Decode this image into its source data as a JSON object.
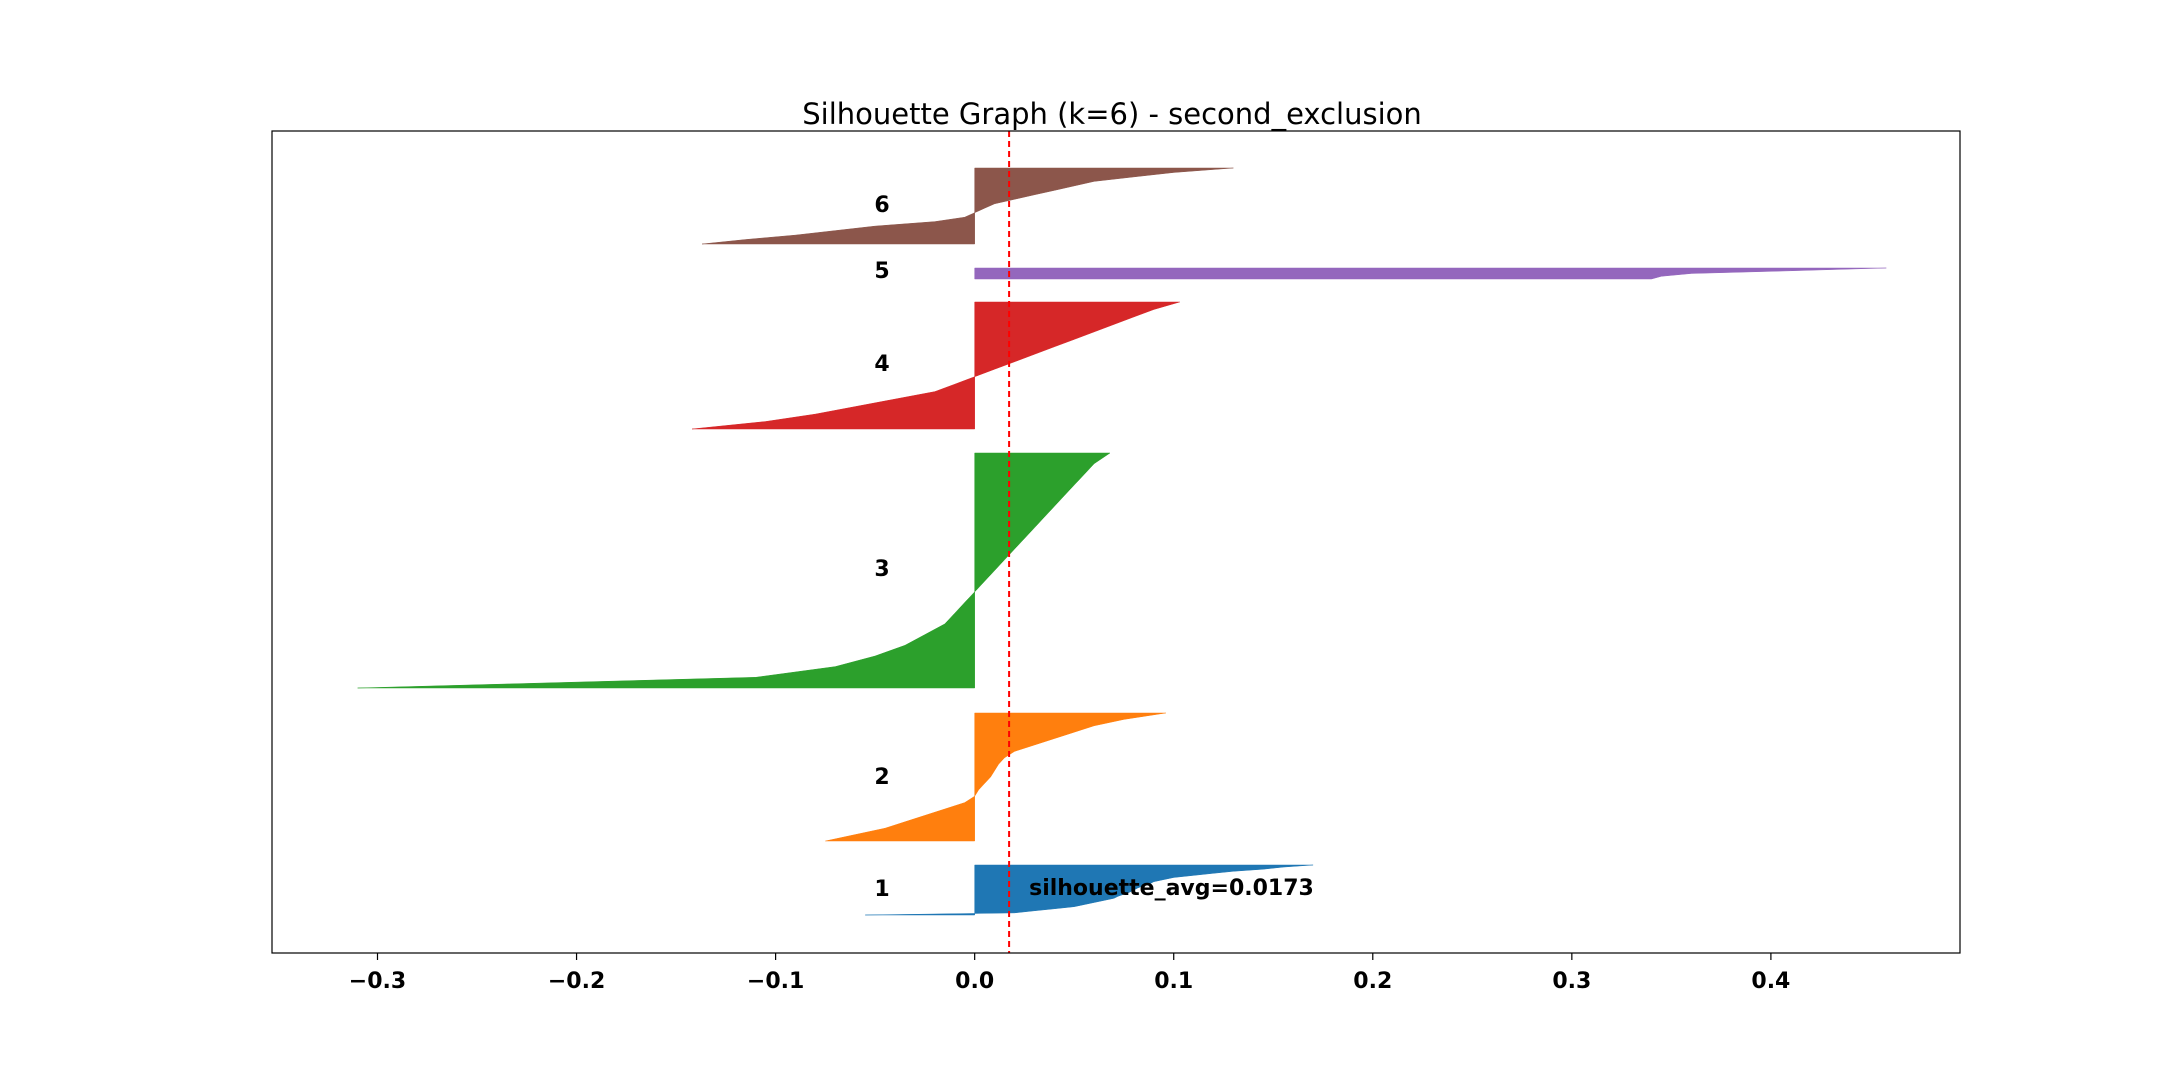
{
  "chart_data": {
    "type": "area",
    "title": "Silhouette Graph (k=6) - second_exclusion",
    "xlabel": "",
    "ylabel": "",
    "xlim": [
      -0.353,
      0.495
    ],
    "x_ticks": [
      -0.3,
      -0.2,
      -0.1,
      0.0,
      0.1,
      0.2,
      0.3,
      0.4
    ],
    "x_tick_labels": [
      "−0.3",
      "−0.2",
      "−0.1",
      "0.0",
      "0.1",
      "0.2",
      "0.3",
      "0.4"
    ],
    "y_ticks_visible": false,
    "grid": false,
    "silhouette_avg": 0.0173,
    "annotation": "silhouette_avg=0.0173",
    "series": [
      {
        "name": "1",
        "color": "#1f77b4",
        "samples": 25,
        "silhouette_values_desc": [
          0.17,
          0.155,
          0.145,
          0.13,
          0.12,
          0.11,
          0.1,
          0.095,
          0.09,
          0.088,
          0.085,
          0.082,
          0.08,
          0.078,
          0.075,
          0.072,
          0.07,
          0.065,
          0.06,
          0.055,
          0.05,
          0.04,
          0.03,
          0.02,
          -0.055
        ]
      },
      {
        "name": "2",
        "color": "#ff7f0e",
        "samples": 65,
        "silhouette_values_desc": [
          0.096,
          0.075,
          0.06,
          0.05,
          0.04,
          0.03,
          0.02,
          0.015,
          0.012,
          0.01,
          0.008,
          0.005,
          0.002,
          0.0,
          -0.005,
          -0.015,
          -0.025,
          -0.035,
          -0.045,
          -0.06,
          -0.075
        ]
      },
      {
        "name": "3",
        "color": "#2ca02c",
        "samples": 120,
        "silhouette_values_desc": [
          0.068,
          0.06,
          0.055,
          0.05,
          0.045,
          0.04,
          0.035,
          0.03,
          0.025,
          0.02,
          0.015,
          0.01,
          0.005,
          0.0,
          -0.005,
          -0.01,
          -0.015,
          -0.025,
          -0.035,
          -0.05,
          -0.07,
          -0.11,
          -0.31
        ]
      },
      {
        "name": "4",
        "color": "#d62728",
        "samples": 65,
        "silhouette_values_desc": [
          0.103,
          0.09,
          0.08,
          0.07,
          0.06,
          0.05,
          0.04,
          0.03,
          0.02,
          0.01,
          0.0,
          -0.01,
          -0.02,
          -0.04,
          -0.06,
          -0.08,
          -0.105,
          -0.142
        ]
      },
      {
        "name": "5",
        "color": "#9467bd",
        "samples": 5,
        "silhouette_values_desc": [
          0.458,
          0.41,
          0.36,
          0.345,
          0.34
        ]
      },
      {
        "name": "6",
        "color": "#8c564b",
        "samples": 40,
        "silhouette_values_desc": [
          0.13,
          0.1,
          0.08,
          0.06,
          0.05,
          0.04,
          0.03,
          0.02,
          0.01,
          0.005,
          0.0,
          -0.005,
          -0.02,
          -0.05,
          -0.07,
          -0.09,
          -0.115,
          -0.137
        ]
      }
    ]
  },
  "avg_line_color": "#ff0000"
}
